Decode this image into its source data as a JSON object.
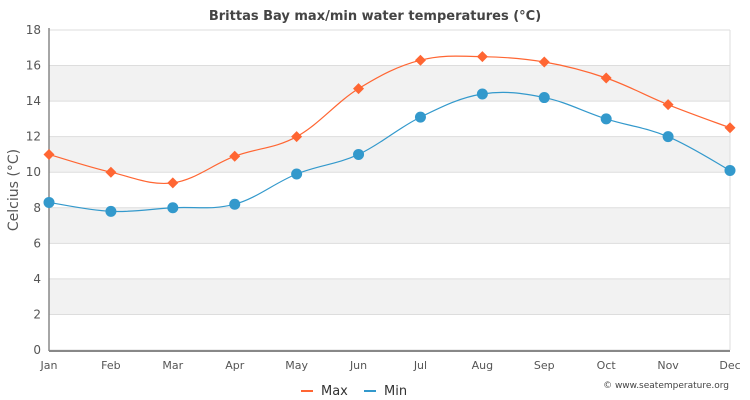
{
  "chart_data": {
    "type": "line",
    "title": "Brittas Bay max/min water temperatures (°C)",
    "xlabel": "",
    "ylabel": "Celcius (°C)",
    "categories": [
      "Jan",
      "Feb",
      "Mar",
      "Apr",
      "May",
      "Jun",
      "Jul",
      "Aug",
      "Sep",
      "Oct",
      "Nov",
      "Dec"
    ],
    "ylim": [
      0,
      18
    ],
    "yticks": [
      0,
      2,
      4,
      6,
      8,
      10,
      12,
      14,
      16,
      18
    ],
    "ytick_labels": [
      "0",
      "2",
      "4",
      "6",
      "8",
      "10",
      "12",
      "14",
      "16",
      "18"
    ],
    "grid": true,
    "alternating_bands": true,
    "legend_position": "bottom-center",
    "series": [
      {
        "name": "Max",
        "color": "#ff6633",
        "marker": "diamond",
        "values": [
          11.0,
          10.0,
          9.4,
          10.9,
          12.0,
          14.7,
          16.3,
          16.5,
          16.2,
          15.3,
          13.8,
          12.5
        ]
      },
      {
        "name": "Min",
        "color": "#3399cc",
        "marker": "circle",
        "values": [
          8.3,
          7.8,
          8.0,
          8.2,
          9.9,
          11.0,
          13.1,
          14.4,
          14.2,
          13.0,
          12.0,
          10.1
        ]
      }
    ],
    "credit": "© www.seatemperature.org"
  }
}
